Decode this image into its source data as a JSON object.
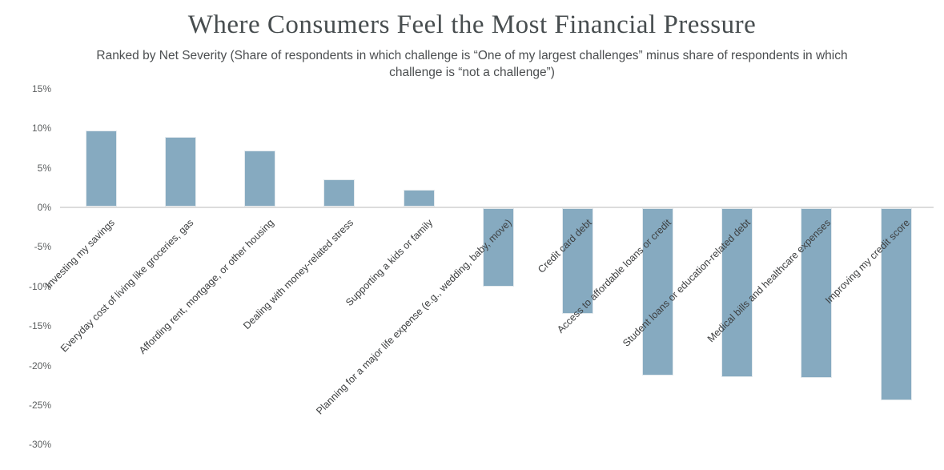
{
  "chart_data": {
    "type": "bar",
    "title": "Where Consumers Feel the Most Financial Pressure",
    "subtitle": "Ranked by Net Severity (Share of respondents in which challenge is “One of my largest challenges” minus share of respondents in which challenge is “not a challenge”)",
    "categories": [
      "Investing my savings",
      "Everyday cost of living like groceries, gas",
      "Affording rent, mortgage, or other housing",
      "Dealing with money-related stress",
      "Supporting a kids or family",
      "Planning for a major life expense (e.g., wedding, baby, move)",
      "Credit card debt",
      "Access to affordable loans or credit",
      "Student loans or education-related debt",
      "Medical bills and healthcare expenses",
      "Improving my credit score"
    ],
    "values": [
      9.6,
      8.8,
      7.1,
      3.4,
      2.1,
      -9.9,
      -13.4,
      -21.2,
      -21.4,
      -21.5,
      -24.3
    ],
    "xlabel": "",
    "ylabel": "",
    "ylim": [
      -30,
      15
    ],
    "ytick_step": 5,
    "ytick_labels": [
      "15%",
      "10%",
      "5%",
      "0%",
      "-5%",
      "-10%",
      "-15%",
      "-20%",
      "-25%",
      "-30%"
    ],
    "grid": false,
    "legend": false,
    "x_label_rotation_deg": 45,
    "bar_color": "#86aac0",
    "axis_line_color": "#dcdcdc",
    "title_color": "#474d4f",
    "subtitle_color": "#4b4e50",
    "tick_label_color": "#5a5d5e",
    "category_label_color": "#3d3f40"
  }
}
